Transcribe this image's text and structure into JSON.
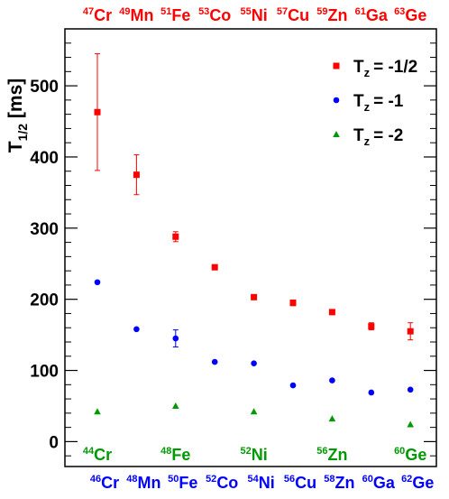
{
  "chart_data": {
    "type": "scatter",
    "ylabel": "T",
    "ylabel_sub": "1/2",
    "ylabel_unit": "[ms]",
    "ylim": [
      -35,
      580
    ],
    "yticks": [
      0,
      100,
      200,
      300,
      400,
      500
    ],
    "grid": false,
    "legend_position": "top-right",
    "colors": {
      "tz_half": "#ff0000",
      "tz_one": "#0000ff",
      "tz_two": "#009900"
    },
    "series": [
      {
        "name": "Tz = -1/2",
        "legend_main": "T",
        "legend_sub": "z",
        "legend_value": "= -1/2",
        "marker": "square",
        "color": "#ff0000",
        "points": [
          {
            "x": 1,
            "y": 463,
            "err": 82
          },
          {
            "x": 2,
            "y": 375,
            "err": 28
          },
          {
            "x": 3,
            "y": 288,
            "err": 7
          },
          {
            "x": 4,
            "y": 245,
            "err": 2
          },
          {
            "x": 5,
            "y": 203,
            "err": 3
          },
          {
            "x": 6,
            "y": 195,
            "err": 4
          },
          {
            "x": 7,
            "y": 182,
            "err": 2
          },
          {
            "x": 8,
            "y": 162,
            "err": 5
          },
          {
            "x": 9,
            "y": 155,
            "err": 12
          }
        ]
      },
      {
        "name": "Tz = -1",
        "legend_main": "T",
        "legend_sub": "z",
        "legend_value": "= -1",
        "marker": "circle",
        "color": "#0000ff",
        "points": [
          {
            "x": 1,
            "y": 224,
            "err": 0
          },
          {
            "x": 2,
            "y": 158,
            "err": 0
          },
          {
            "x": 3,
            "y": 145,
            "err": 12
          },
          {
            "x": 4,
            "y": 112,
            "err": 0
          },
          {
            "x": 5,
            "y": 110,
            "err": 0
          },
          {
            "x": 6,
            "y": 79,
            "err": 0
          },
          {
            "x": 7,
            "y": 86,
            "err": 0
          },
          {
            "x": 8,
            "y": 69,
            "err": 0
          },
          {
            "x": 9,
            "y": 73,
            "err": 0
          }
        ]
      },
      {
        "name": "Tz = -2",
        "legend_main": "T",
        "legend_sub": "z",
        "legend_value": "= -2",
        "marker": "triangle",
        "color": "#009900",
        "points": [
          {
            "x": 1,
            "y": 42,
            "err": 0
          },
          {
            "x": 3,
            "y": 50,
            "err": 0
          },
          {
            "x": 5,
            "y": 42,
            "err": 0
          },
          {
            "x": 7,
            "y": 32,
            "err": 0
          },
          {
            "x": 9,
            "y": 24,
            "err": 0
          }
        ]
      }
    ],
    "top_labels": [
      {
        "x": 1,
        "mass": "47",
        "el": "Cr"
      },
      {
        "x": 2,
        "mass": "49",
        "el": "Mn"
      },
      {
        "x": 3,
        "mass": "51",
        "el": "Fe"
      },
      {
        "x": 4,
        "mass": "53",
        "el": "Co"
      },
      {
        "x": 5,
        "mass": "55",
        "el": "Ni"
      },
      {
        "x": 6,
        "mass": "57",
        "el": "Cu"
      },
      {
        "x": 7,
        "mass": "59",
        "el": "Zn"
      },
      {
        "x": 8,
        "mass": "61",
        "el": "Ga"
      },
      {
        "x": 9,
        "mass": "63",
        "el": "Ge"
      }
    ],
    "bottom_labels": [
      {
        "x": 1,
        "mass": "46",
        "el": "Cr"
      },
      {
        "x": 2,
        "mass": "48",
        "el": "Mn"
      },
      {
        "x": 3,
        "mass": "50",
        "el": "Fe"
      },
      {
        "x": 4,
        "mass": "52",
        "el": "Co"
      },
      {
        "x": 5,
        "mass": "54",
        "el": "Ni"
      },
      {
        "x": 6,
        "mass": "56",
        "el": "Cu"
      },
      {
        "x": 7,
        "mass": "58",
        "el": "Zn"
      },
      {
        "x": 8,
        "mass": "60",
        "el": "Ga"
      },
      {
        "x": 9,
        "mass": "62",
        "el": "Ge"
      }
    ],
    "inner_labels": [
      {
        "x": 1,
        "mass": "44",
        "el": "Cr"
      },
      {
        "x": 3,
        "mass": "48",
        "el": "Fe"
      },
      {
        "x": 5,
        "mass": "52",
        "el": "Ni"
      },
      {
        "x": 7,
        "mass": "56",
        "el": "Zn"
      },
      {
        "x": 9,
        "mass": "60",
        "el": "Ge"
      }
    ]
  }
}
